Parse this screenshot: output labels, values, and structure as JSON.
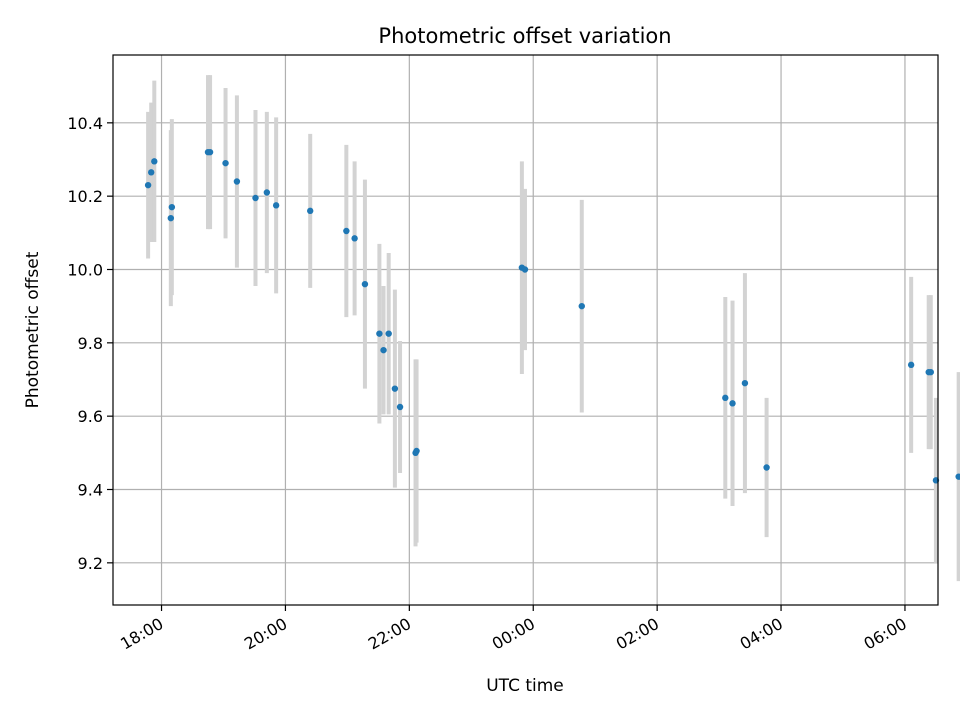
{
  "chart_data": {
    "type": "scatter",
    "title": "Photometric offset variation",
    "xlabel": "UTC time",
    "ylabel": "Photometric offset",
    "grid": true,
    "point_color": "#1f77b4",
    "errorbar_color": "#d3d3d3",
    "xlim": [
      "17:13",
      "06:32"
    ],
    "ylim": [
      9.085,
      10.585
    ],
    "xticks": [
      "18:00",
      "20:00",
      "22:00",
      "00:00",
      "02:00",
      "04:00",
      "06:00"
    ],
    "yticks": [
      "9.2",
      "9.4",
      "9.6",
      "9.8",
      "10.0",
      "10.2",
      "10.4"
    ],
    "series": [
      {
        "points": [
          {
            "x": "17:47",
            "y": 10.23,
            "err": 0.2
          },
          {
            "x": "17:50",
            "y": 10.265,
            "err": 0.19
          },
          {
            "x": "17:53",
            "y": 10.295,
            "err": 0.22
          },
          {
            "x": "18:09",
            "y": 10.14,
            "err": 0.24
          },
          {
            "x": "18:10",
            "y": 10.17,
            "err": 0.24
          },
          {
            "x": "18:45",
            "y": 10.32,
            "err": 0.21
          },
          {
            "x": "18:47",
            "y": 10.32,
            "err": 0.21
          },
          {
            "x": "19:02",
            "y": 10.29,
            "err": 0.205
          },
          {
            "x": "19:13",
            "y": 10.24,
            "err": 0.235
          },
          {
            "x": "19:31",
            "y": 10.195,
            "err": 0.24
          },
          {
            "x": "19:42",
            "y": 10.21,
            "err": 0.22
          },
          {
            "x": "19:51",
            "y": 10.175,
            "err": 0.24
          },
          {
            "x": "20:24",
            "y": 10.16,
            "err": 0.21
          },
          {
            "x": "20:59",
            "y": 10.105,
            "err": 0.235
          },
          {
            "x": "21:07",
            "y": 10.085,
            "err": 0.21
          },
          {
            "x": "21:17",
            "y": 9.96,
            "err": 0.285
          },
          {
            "x": "21:31",
            "y": 9.825,
            "err": 0.245
          },
          {
            "x": "21:35",
            "y": 9.78,
            "err": 0.175
          },
          {
            "x": "21:40",
            "y": 9.825,
            "err": 0.22
          },
          {
            "x": "21:46",
            "y": 9.675,
            "err": 0.27
          },
          {
            "x": "21:51",
            "y": 9.625,
            "err": 0.18
          },
          {
            "x": "22:06",
            "y": 9.5,
            "err": 0.255
          },
          {
            "x": "22:07",
            "y": 9.505,
            "err": 0.25
          },
          {
            "x": "23:49",
            "y": 10.005,
            "err": 0.29
          },
          {
            "x": "23:52",
            "y": 10.0,
            "err": 0.22
          },
          {
            "x": "00:47",
            "y": 9.9,
            "err": 0.29
          },
          {
            "x": "03:06",
            "y": 9.65,
            "err": 0.275
          },
          {
            "x": "03:13",
            "y": 9.635,
            "err": 0.28
          },
          {
            "x": "03:25",
            "y": 9.69,
            "err": 0.3
          },
          {
            "x": "03:46",
            "y": 9.46,
            "err": 0.19
          },
          {
            "x": "06:06",
            "y": 9.74,
            "err": 0.24
          },
          {
            "x": "06:23",
            "y": 9.72,
            "err": 0.21
          },
          {
            "x": "06:25",
            "y": 9.72,
            "err": 0.21
          },
          {
            "x": "06:30",
            "y": 9.425,
            "err": 0.225
          },
          {
            "x": "06:52",
            "y": 9.435,
            "err": 0.285
          }
        ]
      }
    ]
  }
}
